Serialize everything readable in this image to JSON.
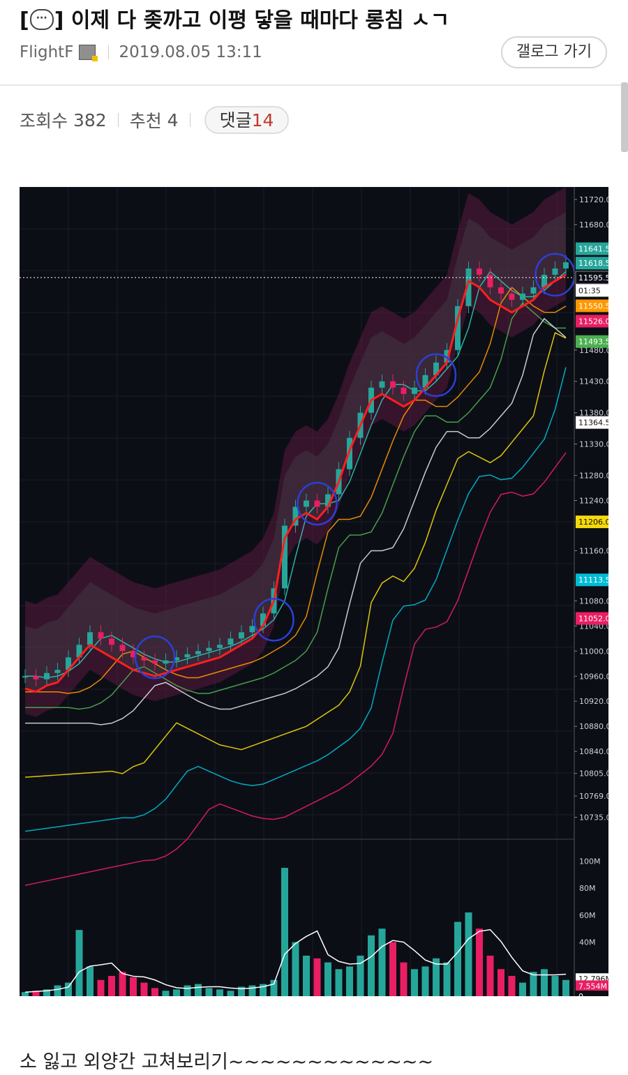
{
  "post": {
    "title_prefix": "[",
    "title_suffix": "] 이제 다 좆까고 이평 닿을 때마다 롱침 ㅅㄱ",
    "author": "FlightF",
    "datetime": "2019.08.05 13:11",
    "gallog_label": "갤로그 가기",
    "views_label": "조회수",
    "views": "382",
    "recommend_label": "추천",
    "recommend": "4",
    "comment_label": "댓글",
    "comment_count": "14",
    "body": "소 잃고 외양간 고쳐보리기~~~~~~~~~~~~~"
  },
  "chart_data": {
    "type": "line",
    "price_axis": [
      "11720.0",
      "11680.0",
      "11480.0",
      "11430.0",
      "11380.0",
      "11330.0",
      "11280.0",
      "11240.0",
      "11160.0",
      "11080.0",
      "11040.0",
      "11000.0",
      "10960.0",
      "10920.0",
      "10880.0",
      "10840.0",
      "10805.0",
      "10769.0",
      "10735.0"
    ],
    "price_badges": [
      {
        "label": "11641.5",
        "color": "#26a69a"
      },
      {
        "label": "11618.5",
        "color": "#26a69a"
      },
      {
        "label": "11595.5",
        "color": "#0c0e16"
      },
      {
        "label": "01:35",
        "color": "#ffffff"
      },
      {
        "label": "11550.5",
        "color": "#ff9800"
      },
      {
        "label": "11526.0",
        "color": "#e91e63"
      },
      {
        "label": "11493.5",
        "color": "#4caf50"
      },
      {
        "label": "11364.5",
        "color": "#ffffff"
      },
      {
        "label": "11206.0",
        "color": "#f5d90a"
      },
      {
        "label": "11113.5",
        "color": "#00bcd4"
      },
      {
        "label": "11052.0",
        "color": "#e91e63"
      }
    ],
    "volume_axis": [
      "100M",
      "80M",
      "60M",
      "40M"
    ],
    "volume_badges": [
      {
        "label": "12.796M",
        "color": "#ffffff"
      },
      {
        "label": "7.554M",
        "color": "#e91e63"
      },
      {
        "label": "0",
        "color": "#0c0e16"
      }
    ],
    "close": [
      10960,
      10955,
      10965,
      10970,
      10990,
      11010,
      11030,
      11020,
      11010,
      11000,
      10990,
      10985,
      10980,
      10985,
      10990,
      10995,
      11000,
      11005,
      11010,
      11020,
      11030,
      11040,
      11060,
      11100,
      11200,
      11230,
      11240,
      11230,
      11250,
      11290,
      11340,
      11380,
      11420,
      11430,
      11420,
      11410,
      11420,
      11440,
      11460,
      11480,
      11550,
      11610,
      11600,
      11580,
      11570,
      11560,
      11570,
      11580,
      11600,
      11610,
      11620
    ],
    "volume": [
      3,
      4,
      5,
      8,
      10,
      49,
      22,
      12,
      15,
      18,
      14,
      10,
      6,
      4,
      5,
      8,
      9,
      6,
      5,
      4,
      7,
      8,
      9,
      12,
      95,
      40,
      30,
      28,
      25,
      20,
      22,
      30,
      45,
      50,
      40,
      25,
      20,
      22,
      28,
      25,
      55,
      62,
      50,
      30,
      20,
      15,
      10,
      18,
      20,
      15,
      12
    ]
  }
}
